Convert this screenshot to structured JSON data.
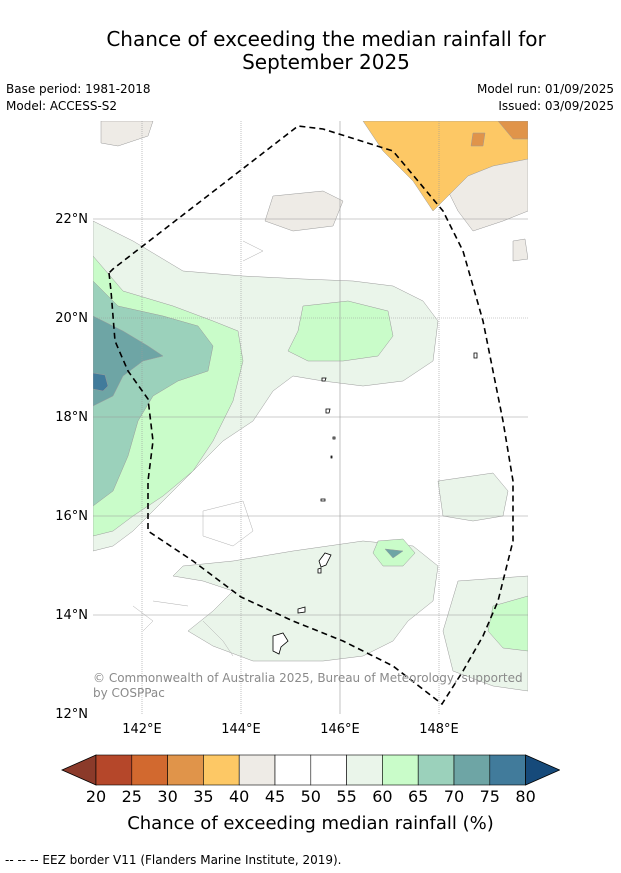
{
  "header": {
    "title_line1": "Chance of exceeding the median rainfall for",
    "title_line2": "September 2025",
    "base_period": "Base period: 1981-2018",
    "model": "Model: ACCESS-S2",
    "model_run": "Model run: 01/09/2025",
    "issued": "Issued: 03/09/2025"
  },
  "map": {
    "lat_labels": [
      "22°N",
      "20°N",
      "18°N",
      "16°N",
      "14°N",
      "12°N"
    ],
    "lon_labels": [
      "142°E",
      "144°E",
      "146°E",
      "148°E"
    ],
    "credit": "© Commonwealth of Australia 2025, Bureau of Meteorology, supported by COSPPac"
  },
  "colorbar": {
    "ticks": [
      "20",
      "25",
      "30",
      "35",
      "40",
      "45",
      "50",
      "55",
      "60",
      "65",
      "70",
      "75",
      "80"
    ],
    "colors": [
      "#8b3a2a",
      "#b5472a",
      "#d2692f",
      "#e0944a",
      "#fdc865",
      "#eeebe6",
      "#ffffff",
      "#ffffff",
      "#eaf5ea",
      "#c9fcc9",
      "#9bd1bb",
      "#6ea5a5",
      "#417b9b",
      "#164a7a"
    ],
    "label": "Chance of exceeding median rainfall (%)"
  },
  "footer": {
    "legend": "--  --  -- EEZ border V11 (Flanders Marine Institute, 2019)."
  }
}
